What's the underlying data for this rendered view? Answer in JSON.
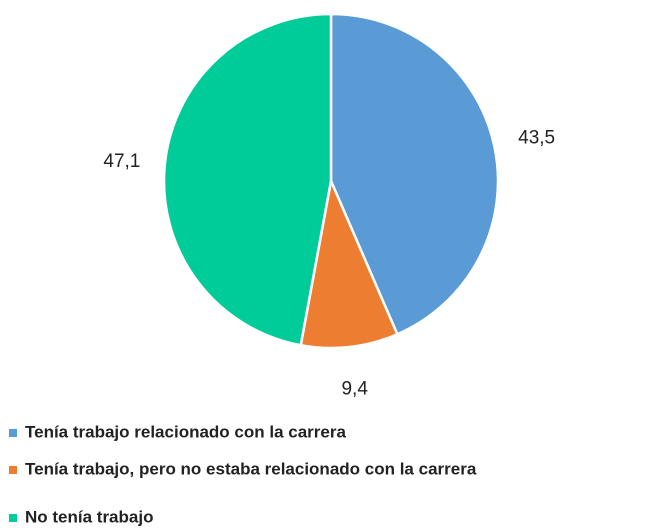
{
  "chart_data": {
    "type": "pie",
    "categories": [
      "Tenía trabajo relacionado con la carrera",
      "Tenía trabajo, pero no estaba relacionado con la carrera",
      "No tenía trabajo"
    ],
    "values": [
      43.5,
      9.4,
      47.1
    ],
    "value_labels": [
      "43,5",
      "9,4",
      "47,1"
    ],
    "colors": [
      "#5b9bd5",
      "#ed7d31",
      "#00cc99"
    ],
    "legend": "bottom"
  }
}
